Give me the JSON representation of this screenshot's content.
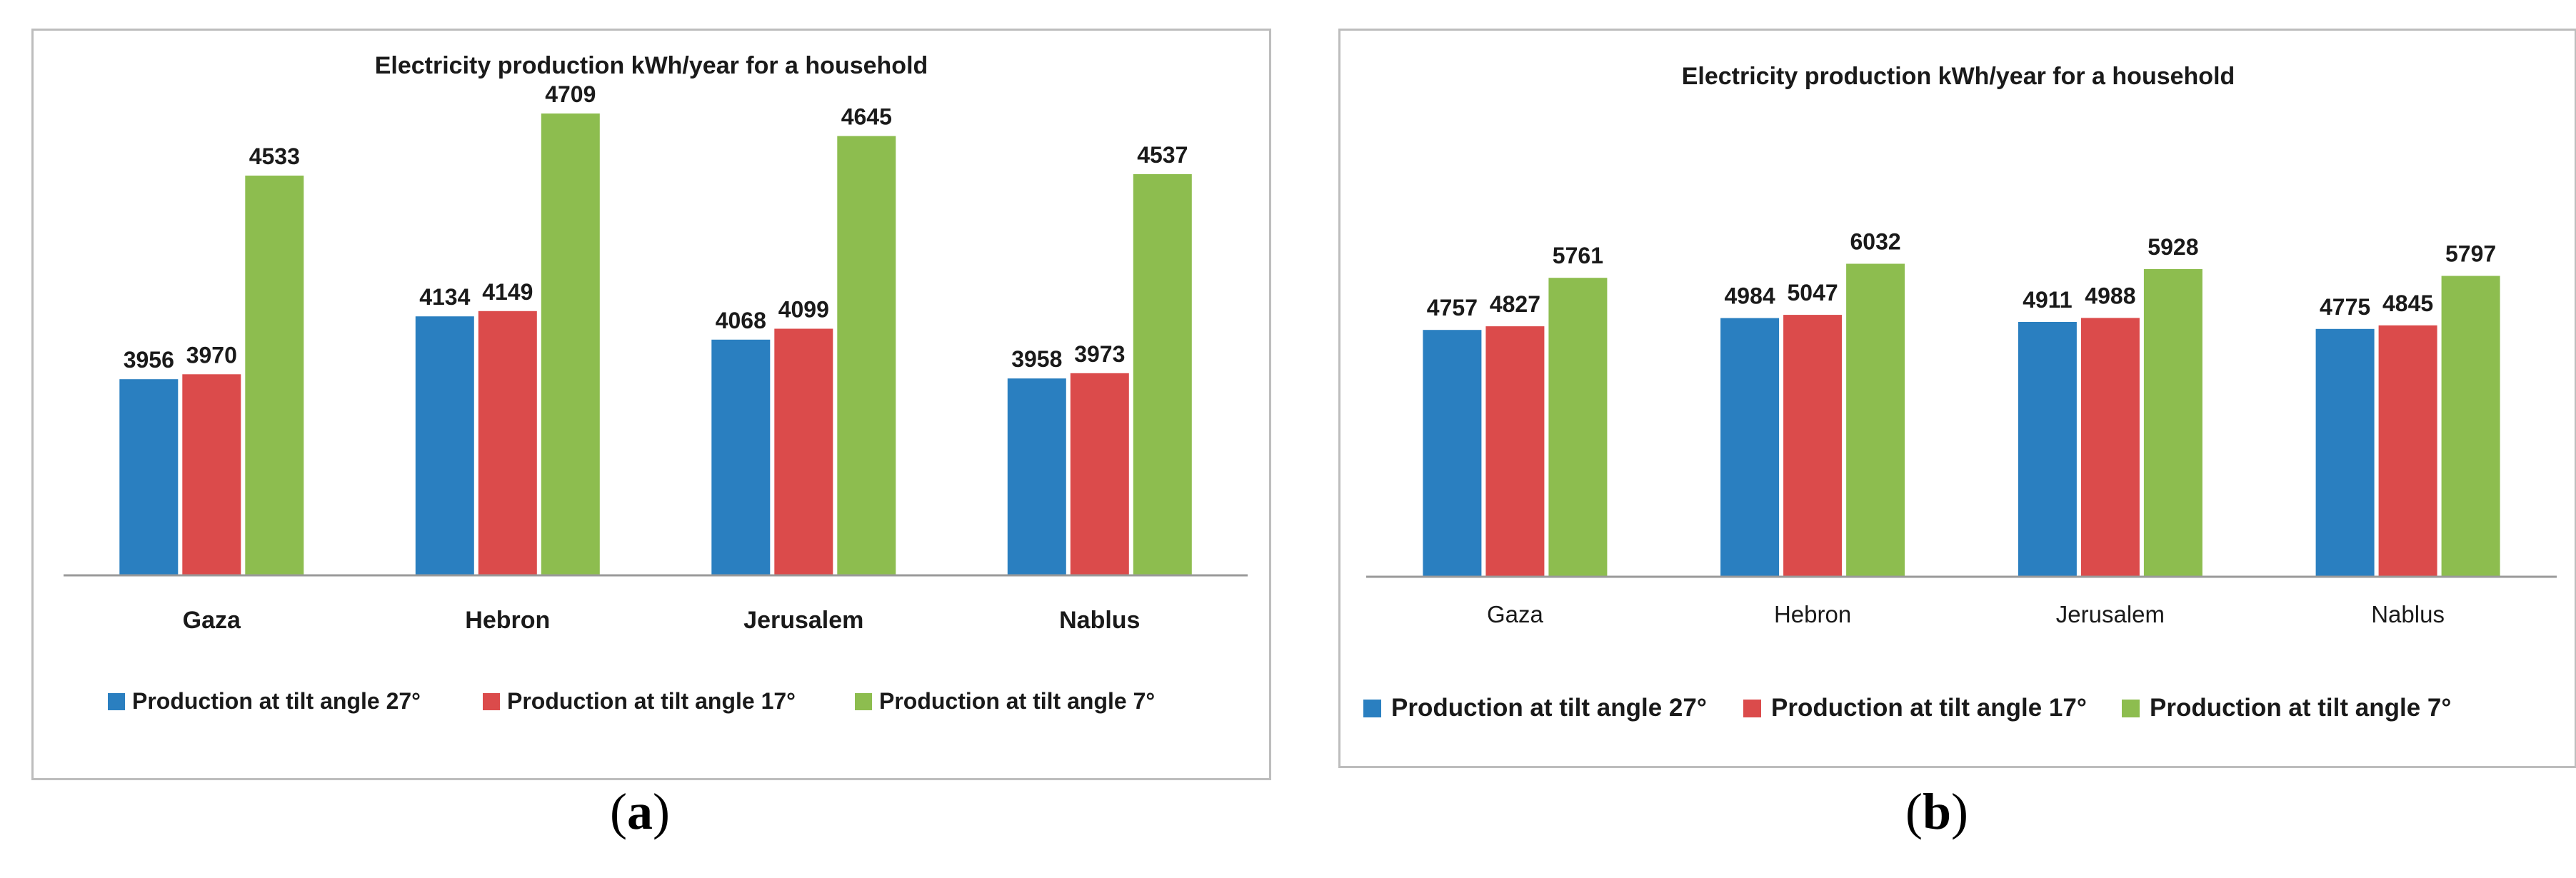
{
  "captions": [
    "(a)",
    "(b)"
  ],
  "caption_letters": [
    "a",
    "b"
  ],
  "colors": {
    "series": [
      "#2a7fc0",
      "#db4b4b",
      "#8dbd4f"
    ],
    "axis": "#9a9a9a",
    "border": "#bdbdbd"
  },
  "chart_data": [
    {
      "type": "bar",
      "title": "Electricity production kWh/year for a household",
      "categories": [
        "Gaza",
        "Hebron",
        "Jerusalem",
        "Nablus"
      ],
      "series": [
        {
          "name": "Production at tilt angle 27°",
          "values": [
            3956,
            4134,
            4068,
            3958
          ]
        },
        {
          "name": "Production at tilt angle 17°",
          "values": [
            3970,
            4149,
            4099,
            3973
          ]
        },
        {
          "name": "Production at tilt angle 7°",
          "values": [
            4533,
            4709,
            4645,
            4537
          ]
        }
      ],
      "xlabel": "",
      "ylabel": "",
      "ylim": [
        3400,
        4800
      ],
      "grid": false,
      "legend": "bottom"
    },
    {
      "type": "bar",
      "title": "Electricity production kWh/year for a household",
      "categories": [
        "Gaza",
        "Hebron",
        "Jerusalem",
        "Nablus"
      ],
      "series": [
        {
          "name": "Production at tilt angle 27°",
          "values": [
            4757,
            4984,
            4911,
            4775
          ]
        },
        {
          "name": "Production at tilt angle 17°",
          "values": [
            4827,
            5047,
            4988,
            4845
          ]
        },
        {
          "name": "Production at tilt angle 7°",
          "values": [
            5761,
            6032,
            5928,
            5797
          ]
        }
      ],
      "xlabel": "",
      "ylabel": "",
      "ylim": [
        0,
        7400
      ],
      "grid": false,
      "legend": "bottom"
    }
  ]
}
